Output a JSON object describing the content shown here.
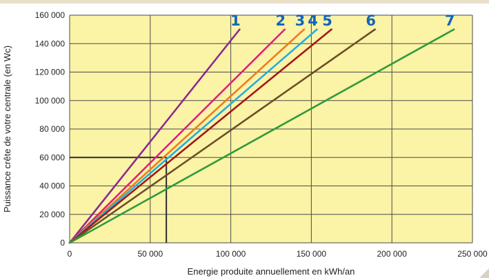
{
  "colors": {
    "plot_bg": "#fbf3a6",
    "grid": "#4a4a4a",
    "label_blue": "#1565b8",
    "ref_lines": "#2b2b2b"
  },
  "chart_data": {
    "type": "line",
    "xlabel": "Energie produite annuellement en kWh/an",
    "ylabel": "Puissance crête de votre centrale (en Wc)",
    "xlim": [
      0,
      250000
    ],
    "ylim": [
      0,
      160000
    ],
    "x_ticks": [
      0,
      50000,
      100000,
      150000,
      200000,
      250000
    ],
    "x_tick_labels": [
      "0",
      "50 000",
      "100 000",
      "150 000",
      "200 000",
      "250 000"
    ],
    "y_ticks": [
      0,
      20000,
      40000,
      60000,
      80000,
      100000,
      120000,
      140000,
      160000
    ],
    "y_tick_labels": [
      "0",
      "20 000",
      "40 000",
      "60 000",
      "80 000",
      "100 000",
      "120 000",
      "140 000",
      "160 000"
    ],
    "grid": true,
    "series": [
      {
        "name": "1",
        "color": "#8b2a8e",
        "x": [
          0,
          105500
        ],
        "y": [
          0,
          150000
        ]
      },
      {
        "name": "2",
        "color": "#e0207a",
        "x": [
          0,
          133500
        ],
        "y": [
          0,
          150000
        ]
      },
      {
        "name": "3",
        "color": "#ee7b22",
        "x": [
          0,
          145500
        ],
        "y": [
          0,
          150000
        ]
      },
      {
        "name": "4",
        "color": "#22aee0",
        "x": [
          0,
          153500
        ],
        "y": [
          0,
          150000
        ]
      },
      {
        "name": "5",
        "color": "#a3161a",
        "x": [
          0,
          162500
        ],
        "y": [
          0,
          150000
        ]
      },
      {
        "name": "6",
        "color": "#6b4f2a",
        "x": [
          0,
          189500
        ],
        "y": [
          0,
          150000
        ]
      },
      {
        "name": "7",
        "color": "#2e9a3a",
        "x": [
          0,
          238500
        ],
        "y": [
          0,
          150000
        ]
      }
    ],
    "reference_lines": {
      "x": 60000,
      "y": 60000
    }
  }
}
